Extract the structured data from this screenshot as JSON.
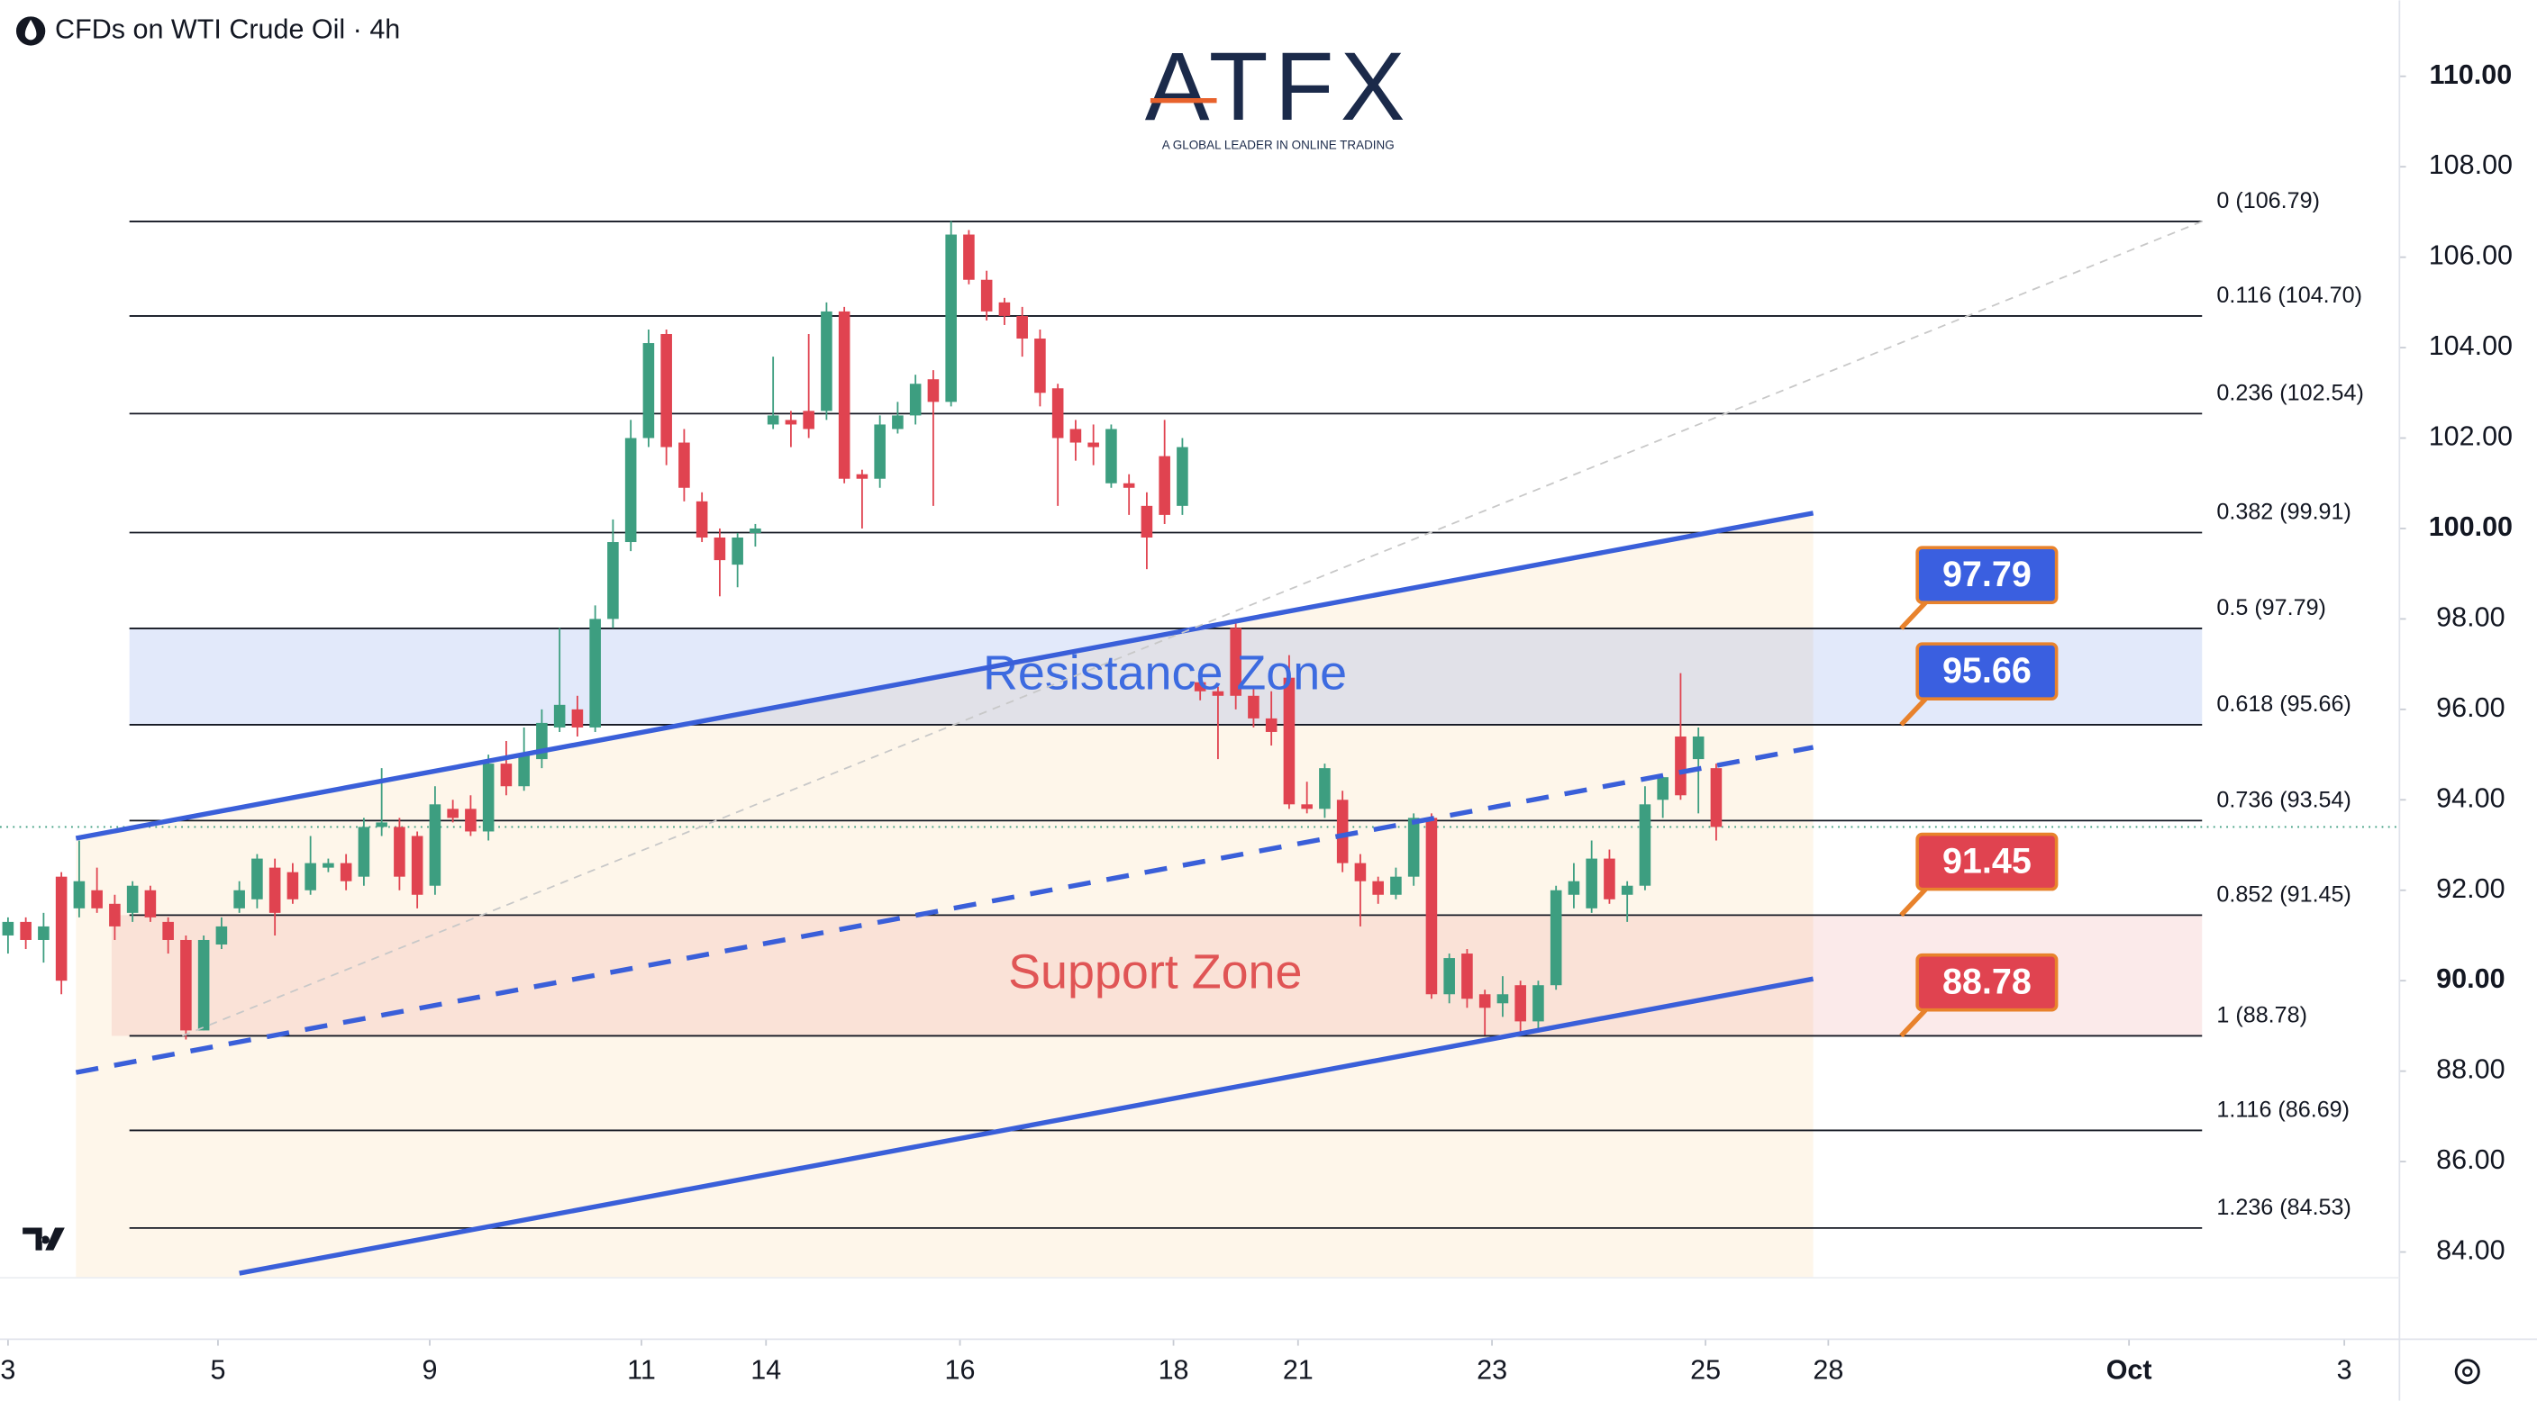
{
  "chart_data": {
    "type": "candlestick",
    "title": "CFDs on WTI Crude Oil · 4h",
    "logo": {
      "name": "ATFX",
      "tagline": "A GLOBAL LEADER IN ONLINE TRADING"
    },
    "up_color": "#3d9e80",
    "down_color": "#e04350",
    "open": [
      91.0,
      91.3,
      90.9,
      92.3,
      91.6,
      92.0,
      91.7,
      91.5,
      92.0,
      91.3,
      90.9,
      88.9,
      90.8,
      91.6,
      91.8,
      92.5,
      92.4,
      92.0,
      92.5,
      92.6,
      92.3,
      93.4,
      93.4,
      93.2,
      92.1,
      93.8,
      93.8,
      93.3,
      94.8,
      94.3,
      94.9,
      95.6,
      96.0,
      95.6,
      98.0,
      99.7,
      102.0,
      104.3,
      101.9,
      100.6,
      99.8,
      99.2,
      99.9,
      102.3,
      102.4,
      102.6,
      102.6,
      104.8,
      101.2,
      101.1,
      102.2,
      102.5,
      103.3,
      102.8,
      106.5,
      105.5,
      105.0,
      104.7,
      104.2,
      103.1,
      102.2,
      101.9,
      101.0,
      101.0,
      100.5,
      101.6,
      100.5,
      96.6,
      96.4,
      97.8,
      96.3,
      95.8,
      96.7,
      93.9,
      93.8,
      94.0,
      92.6,
      92.2,
      91.9,
      92.3,
      93.6,
      89.7,
      90.6,
      89.7,
      89.5,
      89.9,
      89.1,
      89.9,
      91.9,
      91.6,
      92.7,
      91.9,
      92.1,
      94.0,
      95.4,
      94.9,
      94.7
    ],
    "high": [
      91.4,
      91.4,
      91.5,
      92.4,
      93.1,
      92.5,
      91.9,
      92.2,
      92.1,
      91.4,
      91.0,
      91.0,
      91.4,
      92.2,
      92.8,
      92.7,
      92.6,
      93.2,
      92.7,
      92.8,
      93.6,
      94.7,
      93.6,
      93.3,
      94.3,
      94.0,
      94.1,
      95.0,
      95.3,
      95.6,
      96.0,
      97.8,
      96.3,
      98.3,
      100.2,
      102.4,
      104.4,
      104.4,
      102.2,
      100.8,
      100.0,
      99.9,
      100.1,
      103.8,
      102.6,
      104.3,
      105.0,
      104.9,
      101.3,
      102.5,
      102.8,
      103.4,
      103.5,
      106.8,
      106.6,
      105.7,
      105.1,
      104.9,
      104.4,
      103.2,
      102.4,
      102.3,
      102.3,
      101.2,
      100.8,
      102.4,
      102.0,
      96.7,
      96.5,
      98.0,
      96.5,
      96.4,
      97.2,
      94.4,
      94.8,
      94.2,
      92.8,
      92.3,
      92.5,
      93.7,
      93.7,
      90.6,
      90.7,
      89.8,
      90.1,
      90.0,
      90.0,
      92.1,
      92.6,
      93.1,
      92.9,
      92.2,
      94.3,
      94.5,
      96.8,
      95.6,
      94.8
    ],
    "low": [
      90.6,
      90.7,
      90.4,
      89.7,
      91.4,
      91.5,
      90.9,
      91.3,
      91.3,
      90.6,
      88.7,
      88.9,
      90.7,
      91.5,
      91.6,
      91.0,
      91.7,
      91.9,
      92.4,
      92.0,
      92.1,
      93.2,
      92.0,
      91.6,
      91.9,
      93.5,
      93.2,
      93.1,
      94.1,
      94.2,
      94.7,
      95.5,
      95.4,
      95.5,
      97.8,
      99.5,
      101.8,
      101.4,
      100.6,
      99.7,
      98.5,
      98.7,
      99.6,
      102.2,
      101.8,
      102.0,
      102.4,
      101.0,
      100.0,
      100.9,
      102.1,
      102.3,
      100.5,
      102.7,
      105.4,
      104.6,
      104.5,
      103.8,
      102.7,
      100.5,
      101.5,
      101.4,
      100.9,
      100.3,
      99.1,
      100.1,
      100.3,
      96.2,
      94.9,
      96.0,
      95.6,
      95.2,
      93.8,
      93.7,
      93.6,
      92.4,
      91.2,
      91.7,
      91.8,
      92.1,
      89.6,
      89.5,
      89.4,
      88.8,
      89.2,
      88.8,
      88.9,
      89.8,
      91.6,
      91.5,
      91.7,
      91.3,
      92.0,
      93.6,
      94.0,
      93.7,
      93.1
    ],
    "close": [
      91.3,
      90.9,
      91.2,
      90.0,
      92.2,
      91.6,
      91.2,
      92.1,
      91.4,
      90.9,
      88.9,
      90.9,
      91.2,
      92.0,
      92.7,
      91.5,
      91.8,
      92.6,
      92.6,
      92.2,
      93.4,
      93.5,
      92.3,
      91.9,
      93.9,
      93.6,
      93.3,
      94.8,
      94.3,
      95.0,
      95.7,
      96.1,
      95.6,
      98.0,
      99.7,
      102.0,
      104.1,
      101.8,
      100.9,
      99.8,
      99.3,
      99.8,
      100.0,
      102.5,
      102.3,
      102.2,
      104.8,
      101.1,
      101.1,
      102.3,
      102.5,
      103.2,
      102.8,
      106.5,
      105.5,
      104.8,
      104.7,
      104.2,
      103.0,
      102.0,
      101.9,
      101.8,
      102.2,
      100.9,
      99.8,
      100.3,
      101.8,
      96.4,
      96.3,
      96.3,
      95.8,
      95.5,
      93.9,
      93.8,
      94.7,
      92.6,
      92.2,
      91.9,
      92.3,
      93.6,
      89.7,
      90.5,
      89.6,
      89.4,
      89.7,
      89.1,
      89.9,
      92.0,
      92.2,
      92.7,
      91.8,
      92.1,
      93.9,
      94.5,
      94.1,
      95.4,
      93.4
    ],
    "xlim": [
      -0.45,
      134.4
    ],
    "xticks": [
      {
        "value": 0,
        "label": "3"
      },
      {
        "value": 11.8,
        "label": "5"
      },
      {
        "value": 23.7,
        "label": "9"
      },
      {
        "value": 35.6,
        "label": "11"
      },
      {
        "value": 42.6,
        "label": "14"
      },
      {
        "value": 53.5,
        "label": "16"
      },
      {
        "value": 65.5,
        "label": "18"
      },
      {
        "value": 72.5,
        "label": "21"
      },
      {
        "value": 83.4,
        "label": "23"
      },
      {
        "value": 95.4,
        "label": "25"
      },
      {
        "value": 102.3,
        "label": "28"
      },
      {
        "value": 119.2,
        "label": "Oct"
      },
      {
        "value": 131.3,
        "label": "3"
      }
    ],
    "ylim": [
      83.43,
      111.68
    ],
    "yticks": [
      {
        "value": 84,
        "label": "84.00"
      },
      {
        "value": 86,
        "label": "86.00"
      },
      {
        "value": 88,
        "label": "88.00"
      },
      {
        "value": 90,
        "label": "90.00"
      },
      {
        "value": 92,
        "label": "92.00"
      },
      {
        "value": 94,
        "label": "94.00"
      },
      {
        "value": 96,
        "label": "96.00"
      },
      {
        "value": 98,
        "label": "98.00"
      },
      {
        "value": 100,
        "label": "100.00"
      },
      {
        "value": 102,
        "label": "102.00"
      },
      {
        "value": 104,
        "label": "104.00"
      },
      {
        "value": 106,
        "label": "106.00"
      },
      {
        "value": 108,
        "label": "108.00"
      },
      {
        "value": 110,
        "label": "110.00"
      }
    ],
    "fib_levels": [
      {
        "price": 106.79,
        "label": "0 (106.79)"
      },
      {
        "price": 104.7,
        "label": "0.116 (104.70)"
      },
      {
        "price": 102.54,
        "label": "0.236 (102.54)"
      },
      {
        "price": 99.91,
        "label": "0.382 (99.91)"
      },
      {
        "price": 97.79,
        "label": "0.5 (97.79)"
      },
      {
        "price": 95.66,
        "label": "0.618 (95.66)"
      },
      {
        "price": 93.54,
        "label": "0.736 (93.54)"
      },
      {
        "price": 91.45,
        "label": "0.852 (91.45)"
      },
      {
        "price": 88.78,
        "label": "1 (88.78)"
      },
      {
        "price": 86.69,
        "label": "1.116 (86.69)"
      },
      {
        "price": 84.53,
        "label": "1.236 (84.53)"
      }
    ],
    "zones": [
      {
        "label": "Resistance Zone",
        "low": 95.66,
        "high": 97.79,
        "color": "#3d6be0"
      },
      {
        "label": "Support Zone",
        "low": 88.78,
        "high": 91.45,
        "color": "#e05555"
      }
    ],
    "trendlines": [
      {
        "style": "solid",
        "x": [
          3.82,
          101.45
        ],
        "y": [
          93.15,
          100.34
        ]
      },
      {
        "style": "dashed",
        "x": [
          3.82,
          101.45
        ],
        "y": [
          87.97,
          95.16
        ]
      },
      {
        "style": "solid",
        "x": [
          13.0,
          101.45
        ],
        "y": [
          83.53,
          90.04
        ]
      },
      {
        "style": "dotted",
        "x": [
          9.8,
          123.3
        ],
        "y": [
          88.78,
          106.79
        ]
      }
    ],
    "line_color": "#3a5fd9",
    "price_labels": [
      {
        "value": 97.79,
        "color": "#3a5fe0"
      },
      {
        "value": 95.66,
        "color": "#3a5fe0"
      },
      {
        "value": 91.45,
        "color": "#e04350"
      },
      {
        "value": 88.78,
        "color": "#e04350"
      }
    ]
  }
}
